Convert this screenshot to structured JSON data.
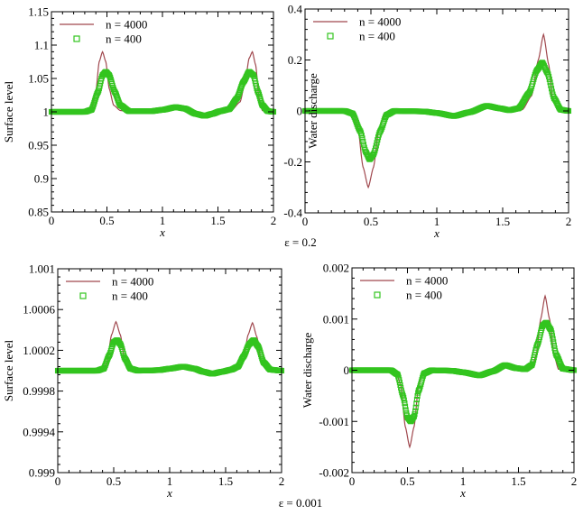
{
  "figure": {
    "captions": [
      "ε = 0.2",
      "ε = 0.001"
    ]
  },
  "colors": {
    "fine": "#a0484e",
    "coarse": "#33c41f"
  },
  "chart_data": [
    {
      "type": "line",
      "xlabel": "x",
      "ylabel": "Surface level",
      "xlim": [
        0,
        2
      ],
      "ylim": [
        0.85,
        1.15
      ],
      "xticks": [
        0,
        0.5,
        1,
        1.5,
        2
      ],
      "xtick_labels": [
        "0",
        "0.5",
        "1",
        "1.5",
        "2"
      ],
      "yticks": [
        0.85,
        0.9,
        0.95,
        1,
        1.05,
        1.1,
        1.15
      ],
      "ytick_labels": [
        "0.85",
        "0.9",
        "0.95",
        "1",
        "1.05",
        "1.1",
        "1.15"
      ],
      "legend": "top-left",
      "series": [
        {
          "name": "n = 4000",
          "style": "line",
          "points": [
            [
              0,
              1
            ],
            [
              0.3,
              1
            ],
            [
              0.36,
              1.002
            ],
            [
              0.4,
              1.03
            ],
            [
              0.43,
              1.075
            ],
            [
              0.46,
              1.09
            ],
            [
              0.49,
              1.075
            ],
            [
              0.52,
              1.035
            ],
            [
              0.56,
              1.01
            ],
            [
              0.62,
              1.002
            ],
            [
              0.7,
              1
            ],
            [
              0.9,
              1.001
            ],
            [
              1.0,
              1.003
            ],
            [
              1.12,
              1.007
            ],
            [
              1.2,
              1.005
            ],
            [
              1.3,
              0.997
            ],
            [
              1.38,
              0.994
            ],
            [
              1.45,
              0.997
            ],
            [
              1.52,
              1.001
            ],
            [
              1.62,
              1.002
            ],
            [
              1.7,
              1.015
            ],
            [
              1.75,
              1.05
            ],
            [
              1.78,
              1.08
            ],
            [
              1.81,
              1.09
            ],
            [
              1.84,
              1.07
            ],
            [
              1.87,
              1.02
            ],
            [
              1.9,
              1.002
            ],
            [
              2,
              1
            ]
          ]
        },
        {
          "name": "n = 400",
          "style": "markers",
          "points": [
            [
              0,
              1
            ],
            [
              0.3,
              1
            ],
            [
              0.36,
              1.003
            ],
            [
              0.42,
              1.03
            ],
            [
              0.46,
              1.055
            ],
            [
              0.49,
              1.06
            ],
            [
              0.52,
              1.055
            ],
            [
              0.57,
              1.03
            ],
            [
              0.62,
              1.01
            ],
            [
              0.7,
              1.001
            ],
            [
              0.9,
              1.001
            ],
            [
              1.0,
              1.003
            ],
            [
              1.12,
              1.007
            ],
            [
              1.2,
              1.005
            ],
            [
              1.3,
              0.997
            ],
            [
              1.38,
              0.994
            ],
            [
              1.45,
              0.997
            ],
            [
              1.52,
              1.001
            ],
            [
              1.6,
              1.004
            ],
            [
              1.67,
              1.02
            ],
            [
              1.73,
              1.045
            ],
            [
              1.78,
              1.06
            ],
            [
              1.82,
              1.055
            ],
            [
              1.86,
              1.03
            ],
            [
              1.9,
              1.01
            ],
            [
              1.95,
              1.001
            ],
            [
              2,
              1
            ]
          ]
        }
      ]
    },
    {
      "type": "line",
      "xlabel": "x",
      "ylabel": "Water discharge",
      "xlim": [
        0,
        2
      ],
      "ylim": [
        -0.4,
        0.4
      ],
      "xticks": [
        0,
        0.5,
        1,
        1.5,
        2
      ],
      "xtick_labels": [
        "0",
        "0.5",
        "1",
        "1.5",
        "2"
      ],
      "yticks": [
        -0.4,
        -0.2,
        0,
        0.2,
        0.4
      ],
      "ytick_labels": [
        "-0.4",
        "-0.2",
        "0",
        "0.2",
        "0.4"
      ],
      "legend": "top-left",
      "series": [
        {
          "name": "n = 4000",
          "style": "line",
          "points": [
            [
              0,
              0
            ],
            [
              0.3,
              0
            ],
            [
              0.36,
              -0.005
            ],
            [
              0.4,
              -0.06
            ],
            [
              0.44,
              -0.22
            ],
            [
              0.48,
              -0.3
            ],
            [
              0.52,
              -0.22
            ],
            [
              0.56,
              -0.07
            ],
            [
              0.6,
              -0.01
            ],
            [
              0.65,
              0
            ],
            [
              0.9,
              -0.002
            ],
            [
              1.0,
              -0.008
            ],
            [
              1.13,
              -0.02
            ],
            [
              1.25,
              -0.005
            ],
            [
              1.38,
              0.02
            ],
            [
              1.48,
              0.01
            ],
            [
              1.55,
              0.003
            ],
            [
              1.65,
              0.005
            ],
            [
              1.72,
              0.06
            ],
            [
              1.77,
              0.2
            ],
            [
              1.81,
              0.3
            ],
            [
              1.85,
              0.18
            ],
            [
              1.88,
              0.04
            ],
            [
              1.92,
              0.002
            ],
            [
              2,
              0
            ]
          ]
        },
        {
          "name": "n = 400",
          "style": "markers",
          "points": [
            [
              0,
              0
            ],
            [
              0.3,
              0
            ],
            [
              0.36,
              -0.01
            ],
            [
              0.42,
              -0.08
            ],
            [
              0.46,
              -0.16
            ],
            [
              0.49,
              -0.19
            ],
            [
              0.52,
              -0.17
            ],
            [
              0.57,
              -0.08
            ],
            [
              0.62,
              -0.015
            ],
            [
              0.68,
              0
            ],
            [
              0.9,
              -0.002
            ],
            [
              1.0,
              -0.008
            ],
            [
              1.13,
              -0.02
            ],
            [
              1.25,
              -0.005
            ],
            [
              1.38,
              0.02
            ],
            [
              1.48,
              0.01
            ],
            [
              1.55,
              0.003
            ],
            [
              1.62,
              0.01
            ],
            [
              1.7,
              0.07
            ],
            [
              1.76,
              0.16
            ],
            [
              1.8,
              0.19
            ],
            [
              1.84,
              0.15
            ],
            [
              1.89,
              0.05
            ],
            [
              1.94,
              0.005
            ],
            [
              2,
              0
            ]
          ]
        }
      ]
    },
    {
      "type": "line",
      "xlabel": "x",
      "ylabel": "Surface level",
      "xlim": [
        0,
        2
      ],
      "ylim": [
        0.999,
        1.001
      ],
      "xticks": [
        0,
        0.5,
        1,
        1.5,
        2
      ],
      "xtick_labels": [
        "0",
        "0.5",
        "1",
        "1.5",
        "2"
      ],
      "yticks": [
        0.999,
        0.9994,
        0.9998,
        1.0002,
        1.0006,
        1.001
      ],
      "ytick_labels": [
        "0.999",
        "0.9994",
        "0.9998",
        "1.0002",
        "1.0006",
        "1.001"
      ],
      "legend": "top-left",
      "series": [
        {
          "name": "n = 4000",
          "style": "line",
          "points": [
            [
              0,
              1
            ],
            [
              0.35,
              1
            ],
            [
              0.4,
              1.00001
            ],
            [
              0.44,
              1.00008
            ],
            [
              0.48,
              1.00035
            ],
            [
              0.52,
              1.00048
            ],
            [
              0.56,
              1.00035
            ],
            [
              0.6,
              1.00008
            ],
            [
              0.65,
              1.00001
            ],
            [
              0.7,
              1
            ],
            [
              0.9,
              1.000005
            ],
            [
              1.0,
              1.00002
            ],
            [
              1.12,
              1.00004
            ],
            [
              1.22,
              1.00002
            ],
            [
              1.3,
              0.99999
            ],
            [
              1.38,
              0.99997
            ],
            [
              1.47,
              0.99999
            ],
            [
              1.55,
              1.00001
            ],
            [
              1.62,
              1.00003
            ],
            [
              1.66,
              1.0001
            ],
            [
              1.7,
              1.00035
            ],
            [
              1.74,
              1.00047
            ],
            [
              1.78,
              1.00033
            ],
            [
              1.82,
              1.00008
            ],
            [
              1.87,
              1.00001
            ],
            [
              2,
              1
            ]
          ]
        },
        {
          "name": "n = 400",
          "style": "markers",
          "points": [
            [
              0,
              1
            ],
            [
              0.35,
              1
            ],
            [
              0.41,
              1.00002
            ],
            [
              0.46,
              1.00015
            ],
            [
              0.5,
              1.00028
            ],
            [
              0.53,
              1.0003
            ],
            [
              0.56,
              1.00026
            ],
            [
              0.6,
              1.00012
            ],
            [
              0.65,
              1.00002
            ],
            [
              0.72,
              1
            ],
            [
              0.9,
              1.000005
            ],
            [
              1.0,
              1.00002
            ],
            [
              1.12,
              1.00004
            ],
            [
              1.22,
              1.00002
            ],
            [
              1.3,
              0.99999
            ],
            [
              1.38,
              0.99997
            ],
            [
              1.47,
              0.99999
            ],
            [
              1.55,
              1.00001
            ],
            [
              1.61,
              1.00004
            ],
            [
              1.66,
              1.00014
            ],
            [
              1.71,
              1.00026
            ],
            [
              1.75,
              1.0003
            ],
            [
              1.79,
              1.00024
            ],
            [
              1.84,
              1.00008
            ],
            [
              1.9,
              1.00001
            ],
            [
              2,
              1
            ]
          ]
        }
      ]
    },
    {
      "type": "line",
      "xlabel": "x",
      "ylabel": "Water discharge",
      "xlim": [
        0,
        2
      ],
      "ylim": [
        -0.002,
        0.002
      ],
      "xticks": [
        0,
        0.5,
        1,
        1.5,
        2
      ],
      "xtick_labels": [
        "0",
        "0.5",
        "1",
        "1.5",
        "2"
      ],
      "yticks": [
        -0.002,
        -0.001,
        0,
        0.001,
        0.002
      ],
      "ytick_labels": [
        "-0.002",
        "-0.001",
        "0",
        "0.001",
        "0.002"
      ],
      "legend": "top-left",
      "series": [
        {
          "name": "n = 4000",
          "style": "line",
          "points": [
            [
              0,
              0
            ],
            [
              0.35,
              0
            ],
            [
              0.4,
              -3e-05
            ],
            [
              0.44,
              -0.0003
            ],
            [
              0.48,
              -0.0011
            ],
            [
              0.52,
              -0.0015
            ],
            [
              0.56,
              -0.0011
            ],
            [
              0.6,
              -0.0003
            ],
            [
              0.64,
              -2e-05
            ],
            [
              0.7,
              0
            ],
            [
              0.9,
              -1e-05
            ],
            [
              1.0,
              -4e-05
            ],
            [
              1.15,
              -0.0001
            ],
            [
              1.27,
              -2e-05
            ],
            [
              1.38,
              0.0001
            ],
            [
              1.48,
              4e-05
            ],
            [
              1.56,
              1e-05
            ],
            [
              1.62,
              3e-05
            ],
            [
              1.66,
              0.0003
            ],
            [
              1.7,
              0.001
            ],
            [
              1.74,
              0.00145
            ],
            [
              1.78,
              0.001
            ],
            [
              1.82,
              0.0003
            ],
            [
              1.86,
              2e-05
            ],
            [
              2,
              0
            ]
          ]
        },
        {
          "name": "n = 400",
          "style": "markers",
          "points": [
            [
              0,
              0
            ],
            [
              0.35,
              0
            ],
            [
              0.41,
              -8e-05
            ],
            [
              0.46,
              -0.0005
            ],
            [
              0.5,
              -0.00092
            ],
            [
              0.53,
              -0.001
            ],
            [
              0.56,
              -0.0009
            ],
            [
              0.6,
              -0.0004
            ],
            [
              0.65,
              -6e-05
            ],
            [
              0.72,
              0
            ],
            [
              0.9,
              -1e-05
            ],
            [
              1.0,
              -4e-05
            ],
            [
              1.15,
              -0.0001
            ],
            [
              1.27,
              -2e-05
            ],
            [
              1.38,
              0.0001
            ],
            [
              1.48,
              4e-05
            ],
            [
              1.56,
              2e-05
            ],
            [
              1.62,
              0.0001
            ],
            [
              1.67,
              0.0005
            ],
            [
              1.72,
              0.00088
            ],
            [
              1.75,
              0.00093
            ],
            [
              1.79,
              0.0008
            ],
            [
              1.84,
              0.0003
            ],
            [
              1.9,
              3e-05
            ],
            [
              2,
              0
            ]
          ]
        }
      ]
    }
  ]
}
